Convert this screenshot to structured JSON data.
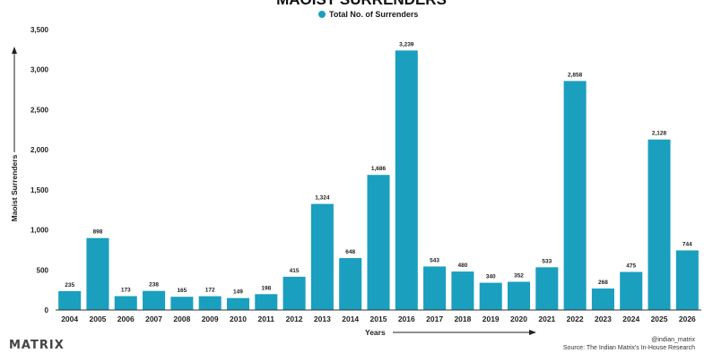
{
  "chart_data": {
    "type": "bar",
    "title": "MAOIST SURRENDERS",
    "legend": [
      "Total No. of Surrenders"
    ],
    "legend_position": "top-center",
    "xlabel": "Years",
    "ylabel": "Maoist Surrenders",
    "ylim": [
      0,
      3500
    ],
    "yticks": [
      0,
      500,
      1000,
      1500,
      2000,
      2500,
      3000,
      3500
    ],
    "ytick_labels": [
      "0",
      "500",
      "1,000",
      "1,500",
      "2,000",
      "2,500",
      "3,000",
      "3,500"
    ],
    "grid": false,
    "bar_color": "#1a9fbf",
    "categories": [
      "2004",
      "2005",
      "2006",
      "2007",
      "2008",
      "2009",
      "2010",
      "2011",
      "2012",
      "2013",
      "2014",
      "2015",
      "2016",
      "2017",
      "2018",
      "2019",
      "2020",
      "2021",
      "2022",
      "2023",
      "2024",
      "2025",
      "2026"
    ],
    "values": [
      235,
      898,
      173,
      238,
      165,
      172,
      149,
      198,
      415,
      1324,
      648,
      1686,
      3239,
      543,
      480,
      340,
      352,
      533,
      2858,
      268,
      475,
      2128,
      744
    ],
    "value_labels": [
      "235",
      "898",
      "173",
      "238",
      "165",
      "172",
      "149",
      "198",
      "415",
      "1,324",
      "648",
      "1,686",
      "3,239",
      "543",
      "480",
      "340",
      "352",
      "533",
      "2,858",
      "268",
      "475",
      "2,128",
      "744"
    ]
  },
  "branding": {
    "logo_text": "MATRIX",
    "handle": "@indian_matrix",
    "source": "Source: The Indian Matrix's In-House Research"
  }
}
